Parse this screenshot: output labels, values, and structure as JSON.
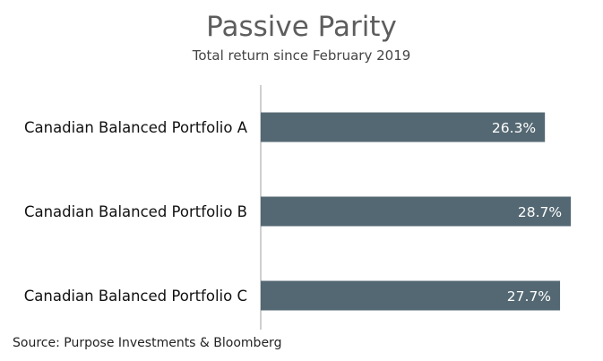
{
  "chart_data": {
    "type": "bar",
    "orientation": "horizontal",
    "title": "Passive Parity",
    "subtitle": "Total return since February 2019",
    "source": "Source: Purpose Investments & Bloomberg",
    "categories": [
      "Canadian Balanced Portfolio A",
      "Canadian Balanced Portfolio B",
      "Canadian Balanced Portfolio C"
    ],
    "values": [
      26.3,
      28.7,
      27.7
    ],
    "data_labels": [
      "26.3%",
      "28.7%",
      "27.7%"
    ],
    "xlim": [
      0,
      30
    ],
    "grid": false,
    "bar_color": "#546873",
    "label_color": "#ffffff",
    "axis_color": "#bfbfbf"
  }
}
